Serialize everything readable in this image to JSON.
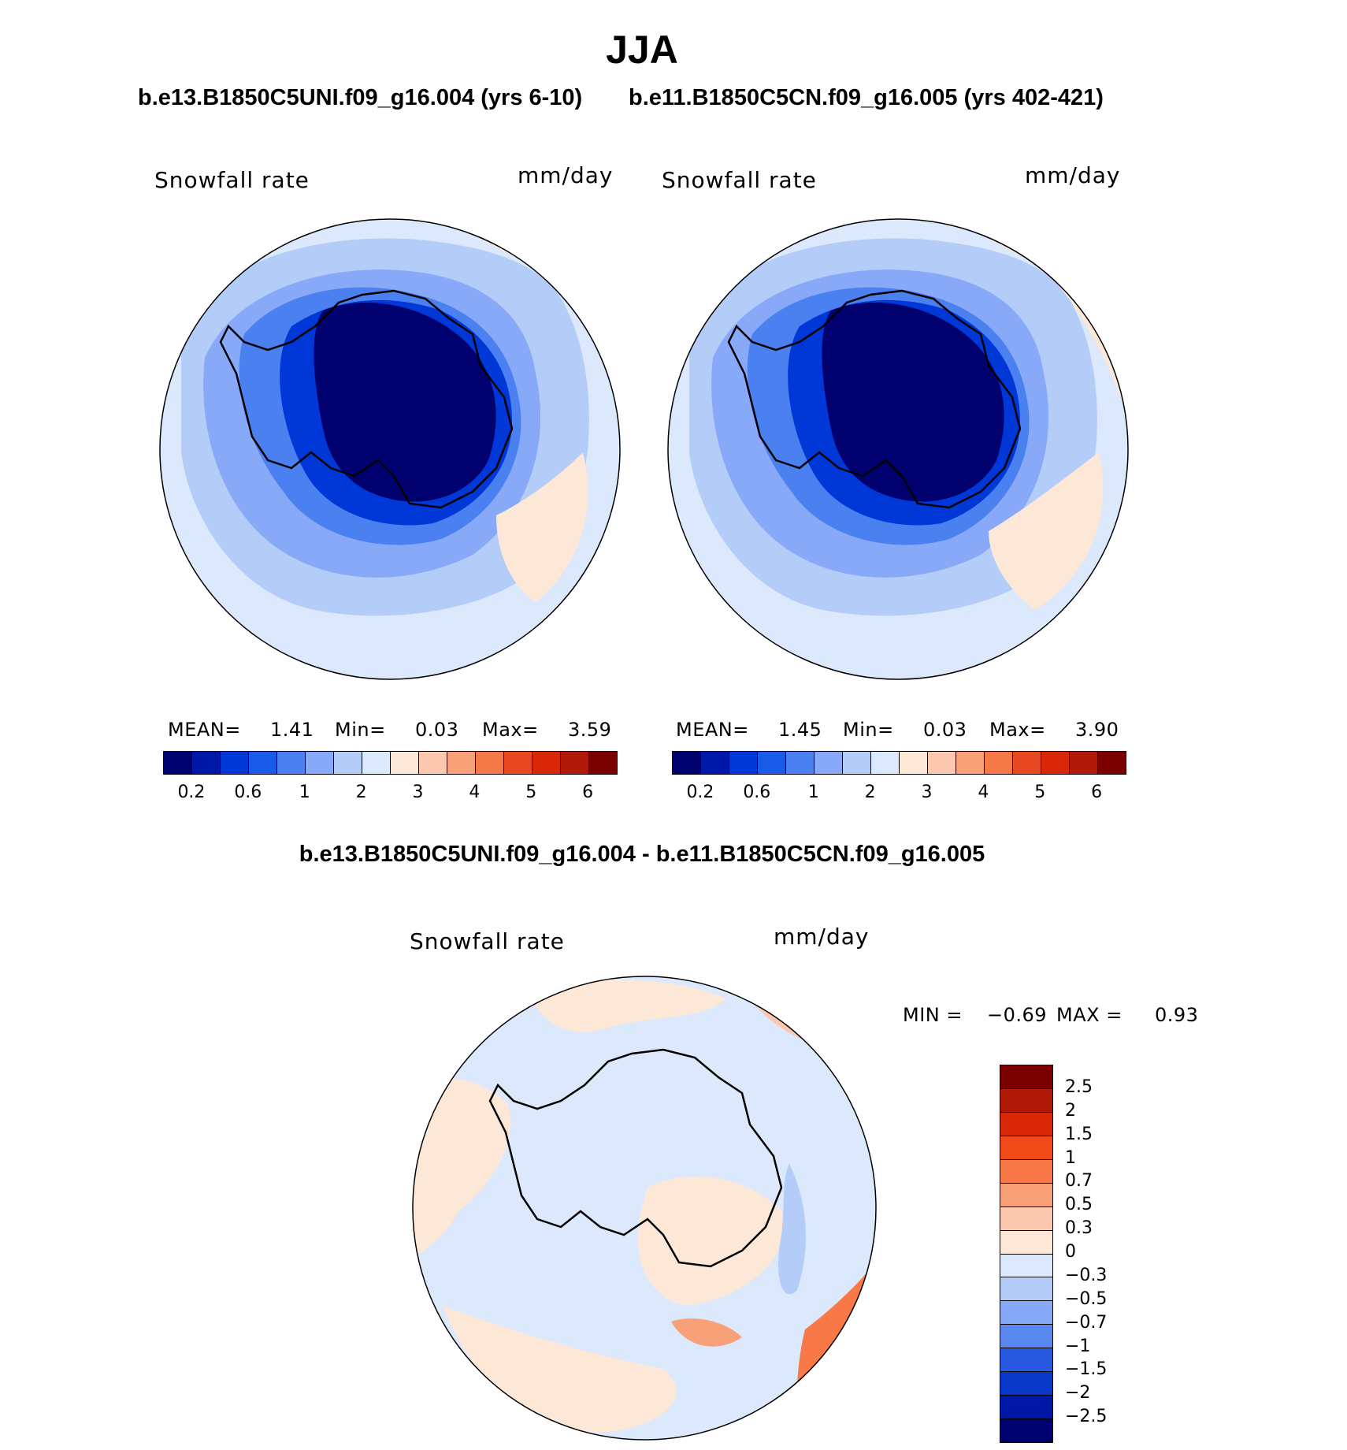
{
  "title": "JJA",
  "panels": [
    {
      "run": "b.e13.B1850C5UNI.f09_g16.004 (yrs 6-10)",
      "variable": "Snowfall rate",
      "units": "mm/day",
      "stats": {
        "mean_label": "MEAN=",
        "mean": "1.41",
        "min_label": "Min=",
        "min": "0.03",
        "max_label": "Max=",
        "max": "3.59"
      }
    },
    {
      "run": "b.e11.B1850C5CN.f09_g16.005 (yrs 402-421)",
      "variable": "Snowfall rate",
      "units": "mm/day",
      "stats": {
        "mean_label": "MEAN=",
        "mean": "1.45",
        "min_label": "Min=",
        "min": "0.03",
        "max_label": "Max=",
        "max": "3.90"
      }
    }
  ],
  "abs_colorbar": {
    "colors": [
      "#00006e",
      "#0018a8",
      "#0038d8",
      "#1a5ae8",
      "#4a80f0",
      "#88a8f8",
      "#b4ccf8",
      "#dce8fb",
      "#fde8d8",
      "#fcc8b0",
      "#f8a078",
      "#f47848",
      "#e84820",
      "#d82808",
      "#b01808",
      "#7a0000"
    ],
    "tick_labels": [
      "0.2",
      "0.6",
      "1",
      "2",
      "3",
      "4",
      "5",
      "6"
    ]
  },
  "difference": {
    "title": "b.e13.B1850C5UNI.f09_g16.004 - b.e11.B1850C5CN.f09_g16.005",
    "variable": "Snowfall rate",
    "units": "mm/day",
    "stats": {
      "min_label": "MIN =",
      "min": "−0.69",
      "max_label": "MAX =",
      "max": "0.93"
    },
    "colorbar": {
      "colors": [
        "#7a0000",
        "#b01808",
        "#d82808",
        "#f04a18",
        "#f87848",
        "#f8a078",
        "#fcc8b0",
        "#fde8d8",
        "#dce8fb",
        "#b4ccf8",
        "#88a8f8",
        "#5a88f0",
        "#2858e0",
        "#0838c8",
        "#0018a8",
        "#00006e"
      ],
      "tick_labels": [
        "2.5",
        "2",
        "1.5",
        "1",
        "0.7",
        "0.5",
        "0.3",
        "0",
        "−0.3",
        "−0.5",
        "−0.7",
        "−1",
        "−1.5",
        "−2",
        "−2.5"
      ]
    }
  },
  "map_colors": {
    "ocean_far": "#dce8fb",
    "ocean_mid": "#b4ccf8",
    "ocean_near": "#88a8f8",
    "coast": "#4a80f0",
    "inland": "#1a5ae8",
    "interior": "#0018a8",
    "plateau": "#00006e",
    "positive": "#fde8d8",
    "positive_strong": "#f8a078"
  }
}
